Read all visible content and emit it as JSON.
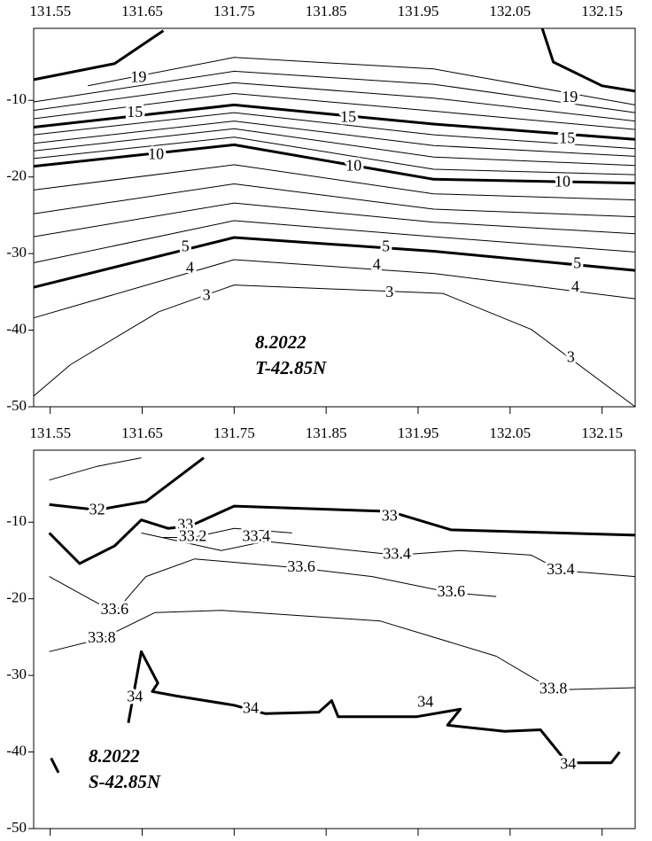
{
  "chart_data": [
    {
      "type": "contour",
      "xlim": [
        131.532,
        132.186
      ],
      "ylim": [
        -50,
        -0.6
      ],
      "xticks": [
        131.55,
        131.65,
        131.75,
        131.85,
        131.95,
        132.05,
        132.15
      ],
      "yticks": [
        -10,
        -20,
        -30,
        -40,
        -50
      ],
      "annotation": [
        "8.2022",
        "T-42.85N"
      ],
      "contours": [
        {
          "level": 19,
          "bold": true,
          "x": [
            131.532,
            131.62,
            131.673,
            null,
            132.085,
            132.097,
            132.15,
            132.186
          ],
          "y": [
            -7.3,
            -5.2,
            -0.9,
            null,
            -0.6,
            -5.0,
            -8.1,
            -8.8
          ],
          "label_x": [],
          "label_y": []
        },
        {
          "level": 19,
          "bold": false,
          "x": [
            131.591,
            131.75,
            131.967,
            132.186
          ],
          "y": [
            -8.1,
            -4.4,
            -5.9,
            -10.6
          ],
          "label_x": [
            131.646,
            132.115
          ],
          "label_y": [
            -7.1,
            -9.7
          ]
        },
        {
          "bold": false,
          "x": [
            131.532,
            131.75,
            131.967,
            132.186
          ],
          "y": [
            -10.2,
            -6.2,
            -7.9,
            -11.6
          ]
        },
        {
          "bold": false,
          "x": [
            131.532,
            131.75,
            131.967,
            132.186
          ],
          "y": [
            -11.3,
            -7.7,
            -9.7,
            -12.7
          ]
        },
        {
          "bold": false,
          "x": [
            131.532,
            131.75,
            131.967,
            132.186
          ],
          "y": [
            -12.4,
            -9.1,
            -11.4,
            -13.8
          ]
        },
        {
          "level": 15,
          "bold": true,
          "x": [
            131.532,
            131.75,
            131.967,
            132.186
          ],
          "y": [
            -13.5,
            -10.6,
            -13.1,
            -15.1
          ],
          "label_x": [
            131.642,
            131.874,
            132.112
          ],
          "label_y": [
            -11.7,
            -12.3,
            -15.1
          ]
        },
        {
          "bold": false,
          "x": [
            131.532,
            131.75,
            131.967,
            132.186
          ],
          "y": [
            -14.5,
            -11.6,
            -14.5,
            -16.3
          ]
        },
        {
          "bold": false,
          "x": [
            131.532,
            131.75,
            131.967,
            132.186
          ],
          "y": [
            -15.6,
            -12.7,
            -15.9,
            -17.3
          ]
        },
        {
          "bold": false,
          "x": [
            131.532,
            131.75,
            131.967,
            132.186
          ],
          "y": [
            -16.6,
            -13.7,
            -17.4,
            -18.5
          ]
        },
        {
          "bold": false,
          "x": [
            131.532,
            131.75,
            131.967,
            132.186
          ],
          "y": [
            -17.6,
            -14.8,
            -19.0,
            -19.7
          ]
        },
        {
          "level": 10,
          "bold": true,
          "x": [
            131.532,
            131.75,
            131.967,
            132.186
          ],
          "y": [
            -18.6,
            -15.8,
            -20.3,
            -20.8
          ],
          "label_x": [
            131.665,
            131.88,
            132.107
          ],
          "label_y": [
            -17.2,
            -18.7,
            -20.8
          ]
        },
        {
          "bold": false,
          "x": [
            131.532,
            131.75,
            131.967,
            132.186
          ],
          "y": [
            -21.7,
            -18.4,
            -22.2,
            -23.0
          ]
        },
        {
          "bold": false,
          "x": [
            131.532,
            131.75,
            131.967,
            132.186
          ],
          "y": [
            -24.8,
            -20.9,
            -24.2,
            -25.2
          ]
        },
        {
          "bold": false,
          "x": [
            131.532,
            131.75,
            131.967,
            132.186
          ],
          "y": [
            -27.8,
            -23.4,
            -25.9,
            -27.4
          ]
        },
        {
          "bold": false,
          "x": [
            131.532,
            131.75,
            131.967,
            132.186
          ],
          "y": [
            -31.2,
            -25.7,
            -27.8,
            -29.8
          ]
        },
        {
          "level": 5,
          "bold": true,
          "x": [
            131.532,
            131.75,
            131.967,
            132.186
          ],
          "y": [
            -34.4,
            -27.9,
            -29.7,
            -32.2
          ],
          "label_x": [
            131.697,
            131.915,
            132.123
          ],
          "label_y": [
            -29.2,
            -29.2,
            -31.4
          ]
        },
        {
          "level": 4,
          "bold": false,
          "x": [
            131.532,
            131.75,
            131.967,
            132.186
          ],
          "y": [
            -38.4,
            -30.8,
            -32.6,
            -35.9
          ],
          "label_x": [
            131.702,
            131.905,
            132.121
          ],
          "label_y": [
            -32.0,
            -31.6,
            -34.5
          ]
        },
        {
          "level": 3,
          "bold": false,
          "x": [
            131.532,
            131.572,
            131.668,
            131.75,
            131.977,
            132.073,
            132.186
          ],
          "y": [
            -48.6,
            -44.5,
            -37.6,
            -34.1,
            -35.2,
            -39.9,
            -50
          ],
          "label_x": [
            131.72,
            131.919,
            132.116
          ],
          "label_y": [
            -35.6,
            -35.2,
            -43.7
          ]
        }
      ]
    },
    {
      "type": "contour",
      "xlim": [
        131.532,
        132.186
      ],
      "ylim": [
        -50,
        -0.6
      ],
      "xticks": [
        131.55,
        131.65,
        131.75,
        131.85,
        131.95,
        132.05,
        132.15
      ],
      "yticks": [
        -10,
        -20,
        -30,
        -40,
        -50
      ],
      "annotation": [
        "8.2022",
        "S-42.85N"
      ],
      "contours": [
        {
          "bold": false,
          "x": [
            131.549,
            131.601,
            131.649
          ],
          "y": [
            -4.5,
            -2.7,
            -1.6
          ]
        },
        {
          "level": 32,
          "bold": true,
          "x": [
            131.549,
            131.601,
            131.654,
            131.717
          ],
          "y": [
            -7.7,
            -8.4,
            -7.3,
            -1.6
          ],
          "label_x": [
            131.601
          ],
          "label_y": [
            -8.5
          ]
        },
        {
          "level": 33,
          "bold": true,
          "x": [
            131.549,
            131.582,
            131.62,
            131.649,
            131.678,
            131.702,
            131.75,
            131.919,
            131.986,
            132.186
          ],
          "y": [
            -11.4,
            -15.4,
            -13.1,
            -9.7,
            -10.8,
            -10.5,
            -7.9,
            -8.6,
            -11.0,
            -11.7
          ],
          "label_x": [
            131.697,
            131.919
          ],
          "label_y": [
            -10.5,
            -9.3
          ]
        },
        {
          "level": 33.2,
          "bold": false,
          "x": [
            131.673,
            131.705,
            131.75,
            131.813
          ],
          "y": [
            -12.0,
            -12.0,
            -10.8,
            -11.4
          ],
          "label_x": [
            131.705
          ],
          "label_y": [
            -12.0
          ]
        },
        {
          "level": 33.4,
          "bold": false,
          "x": [
            131.649,
            131.736,
            131.784,
            131.832,
            131.927,
            131.996,
            132.073,
            132.105,
            132.186
          ],
          "y": [
            -11.4,
            -13.7,
            -12.5,
            -13.1,
            -14.3,
            -13.7,
            -14.3,
            -16.3,
            -17.1
          ],
          "label_x": [
            131.774,
            131.927,
            132.105
          ],
          "label_y": [
            -12.0,
            -14.3,
            -16.3
          ]
        },
        {
          "level": 33.6,
          "bold": false,
          "x": [
            131.549,
            131.62,
            131.654,
            131.707,
            131.823,
            131.9,
            131.986,
            132.035
          ],
          "y": [
            -17.1,
            -21.8,
            -17.1,
            -14.8,
            -16.0,
            -17.1,
            -19.2,
            -19.7
          ],
          "label_x": [
            131.62,
            131.823,
            131.986
          ],
          "label_y": [
            -21.5,
            -16.0,
            -19.2
          ]
        },
        {
          "level": 33.8,
          "bold": false,
          "x": [
            131.549,
            131.606,
            131.664,
            131.736,
            131.909,
            132.035,
            132.097,
            132.186
          ],
          "y": [
            -26.9,
            -25.2,
            -21.8,
            -21.5,
            -22.9,
            -27.5,
            -31.9,
            -31.6
          ],
          "label_x": [
            131.606,
            132.097
          ],
          "label_y": [
            -25.2,
            -31.9
          ]
        },
        {
          "level": 34,
          "bold": true,
          "x": [
            131.551,
            131.559,
            null,
            131.635,
            131.649,
            131.667,
            131.661,
            131.688,
            131.75,
            131.784,
            131.842,
            131.856,
            131.863,
            131.948,
            131.996,
            131.982,
            132.044,
            132.083,
            132.112,
            132.16,
            132.169
          ],
          "y": [
            -40.8,
            -42.7,
            null,
            -36.2,
            -26.9,
            -31.0,
            -32.1,
            -32.7,
            -33.9,
            -35.0,
            -34.8,
            -33.3,
            -35.4,
            -35.4,
            -34.4,
            -36.5,
            -37.3,
            -37.1,
            -41.4,
            -41.4,
            -40.0
          ],
          "label_x": [
            131.642,
            131.768,
            131.958,
            132.113
          ],
          "label_y": [
            -32.9,
            -34.4,
            -33.6,
            -41.7
          ]
        }
      ]
    }
  ]
}
